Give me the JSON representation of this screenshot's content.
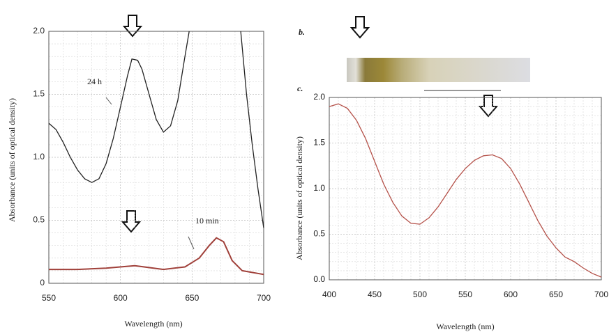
{
  "panel_labels": [
    "b.",
    "c."
  ],
  "chart_data": [
    {
      "type": "line",
      "xlabel": "Wavelength (nm)",
      "ylabel": "Absorbance (units of optical density)",
      "xlim": [
        550,
        700
      ],
      "xticks": [
        550,
        600,
        650,
        700
      ],
      "ylim": [
        0,
        2
      ],
      "yticks": [
        0,
        0.5,
        {
          "value": 1,
          "label": "1.0"
        },
        1.5,
        {
          "value": 2,
          "label": "2.0"
        }
      ],
      "grid": true,
      "series": [
        {
          "name": "24 h",
          "color": "#222222",
          "x": [
            550,
            555,
            560,
            565,
            570,
            575,
            580,
            585,
            590,
            595,
            600,
            605,
            608,
            612,
            615,
            620,
            625,
            630,
            635,
            640,
            645,
            648,
            666,
            684,
            688,
            692,
            696,
            700
          ],
          "values": [
            1.27,
            1.22,
            1.12,
            1.0,
            0.9,
            0.83,
            0.8,
            0.83,
            0.95,
            1.15,
            1.4,
            1.65,
            1.78,
            1.77,
            1.7,
            1.5,
            1.3,
            1.2,
            1.25,
            1.45,
            1.8,
            2.0,
            null,
            2.0,
            1.5,
            1.1,
            0.75,
            0.44
          ]
        },
        {
          "name": "10 min",
          "color": "#a0403a",
          "x": [
            550,
            570,
            590,
            610,
            630,
            645,
            655,
            662,
            667,
            672,
            678,
            685,
            700
          ],
          "values": [
            0.11,
            0.11,
            0.12,
            0.14,
            0.11,
            0.13,
            0.2,
            0.3,
            0.36,
            0.33,
            0.18,
            0.1,
            0.07
          ]
        }
      ]
    },
    {
      "type": "line",
      "xlabel": "Wavelength (nm)",
      "ylabel": "Absorbance (units of optical density)",
      "xlim": [
        400,
        700
      ],
      "xticks": [
        400,
        450,
        500,
        550,
        600,
        650,
        700
      ],
      "ylim": [
        0,
        2
      ],
      "yticks": [
        {
          "value": 0,
          "label": "0.0"
        },
        0.5,
        {
          "value": 1,
          "label": "1.0"
        },
        1.5,
        {
          "value": 2,
          "label": "2.0"
        }
      ],
      "grid": true,
      "series": [
        {
          "name": null,
          "color": "#b5524a",
          "x": [
            400,
            410,
            420,
            430,
            440,
            450,
            460,
            470,
            480,
            490,
            500,
            510,
            520,
            530,
            540,
            550,
            560,
            570,
            580,
            590,
            600,
            610,
            620,
            630,
            640,
            650,
            660,
            670,
            680,
            690,
            700
          ],
          "values": [
            1.9,
            1.93,
            1.88,
            1.75,
            1.55,
            1.3,
            1.05,
            0.85,
            0.7,
            0.62,
            0.61,
            0.68,
            0.8,
            0.95,
            1.1,
            1.22,
            1.31,
            1.36,
            1.37,
            1.33,
            1.22,
            1.05,
            0.85,
            0.65,
            0.48,
            0.35,
            0.25,
            0.2,
            0.13,
            0.07,
            0.03
          ]
        }
      ]
    }
  ]
}
